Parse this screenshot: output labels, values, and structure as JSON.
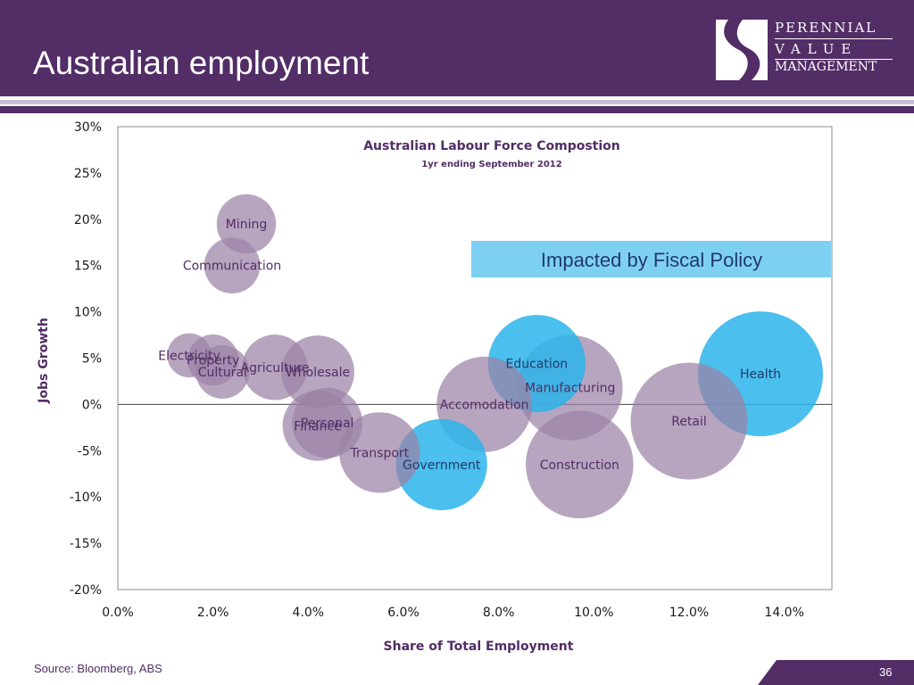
{
  "slide": {
    "title": "Australian employment",
    "source": "Source: Bloomberg, ABS",
    "page_number": "36"
  },
  "logo": {
    "line1": "PERENNIAL",
    "line2": "VALUE",
    "line3": "MANAGEMENT"
  },
  "callout": {
    "text": "Impacted by Fiscal Policy",
    "color": "#7ed0f2"
  },
  "colors": {
    "header": "#522d66",
    "bubble_default": "#9b82a6",
    "bubble_highlight": "#2bb4ea",
    "axis_text": "#1a1a1a",
    "title_text": "#522d66"
  },
  "chart_data": {
    "type": "bubble",
    "title": "Australian Labour Force Compostion",
    "subtitle": "1yr ending September 2012",
    "xlabel": "Share of Total Employment",
    "ylabel": "Jobs Growth",
    "xlim": [
      0,
      15
    ],
    "ylim": [
      -20,
      30
    ],
    "x_ticks": [
      "0.0%",
      "2.0%",
      "4.0%",
      "6.0%",
      "8.0%",
      "10.0%",
      "12.0%",
      "14.0%"
    ],
    "y_ticks": [
      "30%",
      "25%",
      "20%",
      "15%",
      "10%",
      "5%",
      "0%",
      "-5%",
      "-10%",
      "-15%",
      "-20%"
    ],
    "grid": false,
    "points": [
      {
        "label": "Mining",
        "x": 2.7,
        "y": 19.5,
        "size": 2.7,
        "highlight": false
      },
      {
        "label": "Communication",
        "x": 2.4,
        "y": 15.0,
        "size": 2.4,
        "highlight": false
      },
      {
        "label": "Electricity",
        "x": 1.5,
        "y": 5.3,
        "size": 1.5,
        "highlight": false
      },
      {
        "label": "Property",
        "x": 2.0,
        "y": 4.8,
        "size": 2.0,
        "highlight": false
      },
      {
        "label": "Cultural",
        "x": 2.2,
        "y": 3.5,
        "size": 2.2,
        "highlight": false
      },
      {
        "label": "Agriculture",
        "x": 3.3,
        "y": 4.0,
        "size": 3.3,
        "highlight": false
      },
      {
        "label": "Wholesale",
        "x": 4.2,
        "y": 3.5,
        "size": 4.1,
        "highlight": false
      },
      {
        "label": "Personal",
        "x": 4.4,
        "y": -2.0,
        "size": 3.8,
        "highlight": false
      },
      {
        "label": "Finance",
        "x": 4.2,
        "y": -2.3,
        "size": 3.8,
        "highlight": false
      },
      {
        "label": "Transport",
        "x": 5.5,
        "y": -5.2,
        "size": 5.0,
        "highlight": false
      },
      {
        "label": "Government",
        "x": 6.8,
        "y": -6.5,
        "size": 6.4,
        "highlight": true
      },
      {
        "label": "Accomodation",
        "x": 7.7,
        "y": 0.0,
        "size": 7.0,
        "highlight": false
      },
      {
        "label": "Education",
        "x": 8.8,
        "y": 4.4,
        "size": 7.3,
        "highlight": true
      },
      {
        "label": "Manufacturing",
        "x": 9.5,
        "y": 1.8,
        "size": 8.5,
        "highlight": false
      },
      {
        "label": "Construction",
        "x": 9.7,
        "y": -6.5,
        "size": 8.9,
        "highlight": false
      },
      {
        "label": "Retail",
        "x": 12.0,
        "y": -1.8,
        "size": 10.5,
        "highlight": false
      },
      {
        "label": "Health",
        "x": 13.5,
        "y": 3.3,
        "size": 12.0,
        "highlight": true
      }
    ]
  }
}
